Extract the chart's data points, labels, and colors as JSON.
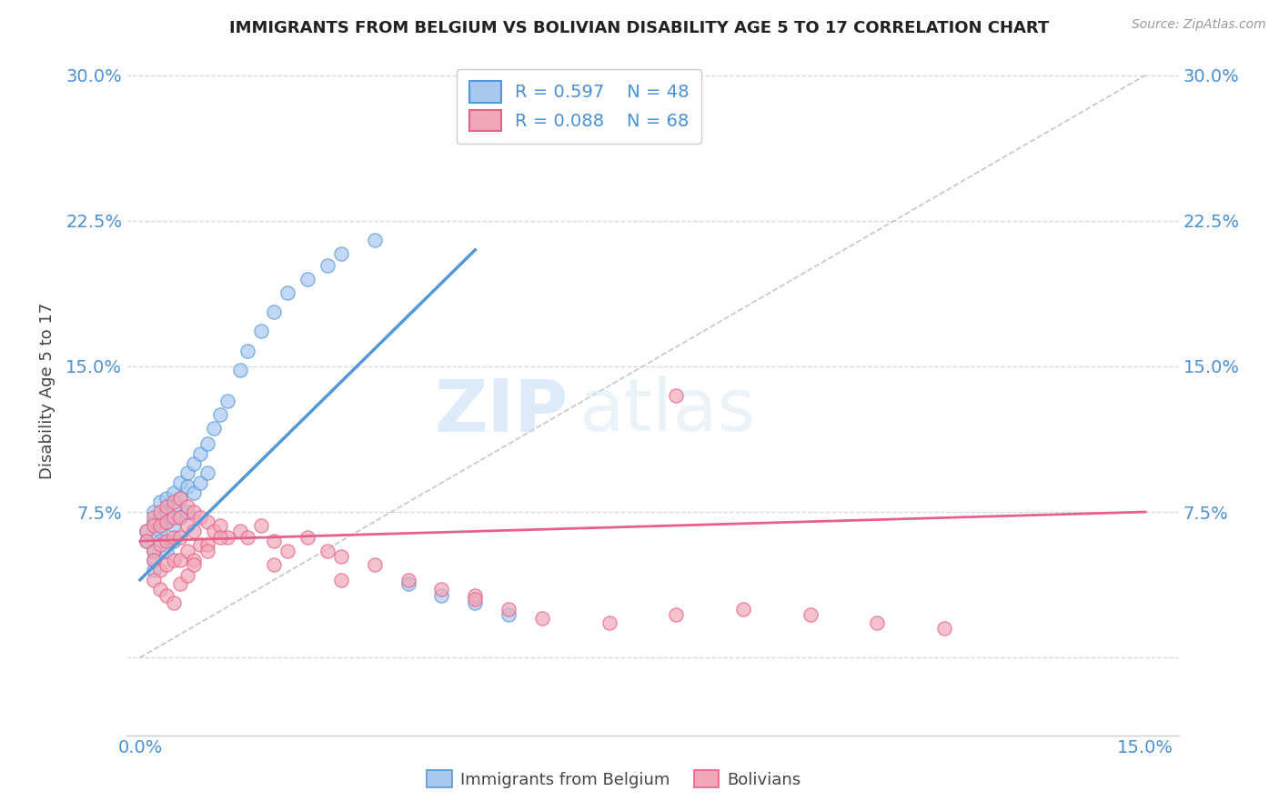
{
  "title": "IMMIGRANTS FROM BELGIUM VS BOLIVIAN DISABILITY AGE 5 TO 17 CORRELATION CHART",
  "source": "Source: ZipAtlas.com",
  "ylabel": "Disability Age 5 to 17",
  "xlim": [
    -0.002,
    0.155
  ],
  "ylim": [
    -0.04,
    0.315
  ],
  "xticks": [
    0.0,
    0.15
  ],
  "xticklabels": [
    "0.0%",
    "15.0%"
  ],
  "yticks": [
    0.0,
    0.075,
    0.15,
    0.225,
    0.3
  ],
  "yticklabels": [
    "",
    "7.5%",
    "15.0%",
    "22.5%",
    "30.0%"
  ],
  "legend_r1": "R = 0.597",
  "legend_n1": "N = 48",
  "legend_r2": "R = 0.088",
  "legend_n2": "N = 68",
  "color_belgium": "#a8c8f0",
  "color_bolivia": "#f0a8b8",
  "color_line_belgium": "#5598d8",
  "color_line_bolivia": "#e8608a",
  "color_diag": "#b8b8b8",
  "color_grid": "#d0d8e8",
  "color_tick_label": "#4a90d9",
  "watermark_zip": "ZIP",
  "watermark_atlas": "atlas",
  "belgium_scatter_x": [
    0.001,
    0.001,
    0.002,
    0.002,
    0.002,
    0.002,
    0.002,
    0.003,
    0.003,
    0.003,
    0.003,
    0.003,
    0.004,
    0.004,
    0.004,
    0.004,
    0.005,
    0.005,
    0.005,
    0.005,
    0.006,
    0.006,
    0.006,
    0.007,
    0.007,
    0.007,
    0.008,
    0.008,
    0.009,
    0.009,
    0.01,
    0.01,
    0.011,
    0.012,
    0.013,
    0.015,
    0.016,
    0.018,
    0.02,
    0.022,
    0.025,
    0.028,
    0.03,
    0.035,
    0.04,
    0.045,
    0.05,
    0.055
  ],
  "belgium_scatter_y": [
    0.065,
    0.06,
    0.07,
    0.075,
    0.055,
    0.05,
    0.045,
    0.08,
    0.068,
    0.072,
    0.065,
    0.06,
    0.075,
    0.082,
    0.07,
    0.055,
    0.085,
    0.078,
    0.068,
    0.06,
    0.09,
    0.082,
    0.072,
    0.095,
    0.088,
    0.075,
    0.1,
    0.085,
    0.105,
    0.09,
    0.11,
    0.095,
    0.118,
    0.125,
    0.132,
    0.148,
    0.158,
    0.168,
    0.178,
    0.188,
    0.195,
    0.202,
    0.208,
    0.215,
    0.038,
    0.032,
    0.028,
    0.022
  ],
  "bolivia_scatter_x": [
    0.001,
    0.001,
    0.002,
    0.002,
    0.002,
    0.002,
    0.003,
    0.003,
    0.003,
    0.003,
    0.004,
    0.004,
    0.004,
    0.004,
    0.005,
    0.005,
    0.005,
    0.005,
    0.006,
    0.006,
    0.006,
    0.006,
    0.007,
    0.007,
    0.007,
    0.008,
    0.008,
    0.008,
    0.009,
    0.009,
    0.01,
    0.01,
    0.011,
    0.012,
    0.013,
    0.015,
    0.016,
    0.018,
    0.02,
    0.022,
    0.025,
    0.028,
    0.03,
    0.035,
    0.04,
    0.045,
    0.05,
    0.055,
    0.06,
    0.07,
    0.08,
    0.09,
    0.1,
    0.11,
    0.12,
    0.002,
    0.003,
    0.004,
    0.005,
    0.006,
    0.007,
    0.008,
    0.01,
    0.012,
    0.02,
    0.03,
    0.05,
    0.08
  ],
  "bolivia_scatter_y": [
    0.065,
    0.06,
    0.072,
    0.068,
    0.055,
    0.05,
    0.075,
    0.068,
    0.058,
    0.045,
    0.078,
    0.07,
    0.06,
    0.048,
    0.08,
    0.072,
    0.062,
    0.05,
    0.082,
    0.072,
    0.062,
    0.05,
    0.078,
    0.068,
    0.055,
    0.075,
    0.065,
    0.05,
    0.072,
    0.058,
    0.07,
    0.058,
    0.065,
    0.068,
    0.062,
    0.065,
    0.062,
    0.068,
    0.06,
    0.055,
    0.062,
    0.055,
    0.052,
    0.048,
    0.04,
    0.035,
    0.032,
    0.025,
    0.02,
    0.018,
    0.135,
    0.025,
    0.022,
    0.018,
    0.015,
    0.04,
    0.035,
    0.032,
    0.028,
    0.038,
    0.042,
    0.048,
    0.055,
    0.062,
    0.048,
    0.04,
    0.03,
    0.022
  ],
  "belgium_line_x": [
    0.0,
    0.05
  ],
  "belgium_line_y": [
    0.04,
    0.21
  ],
  "bolivia_line_x": [
    0.0,
    0.15
  ],
  "bolivia_line_y": [
    0.06,
    0.075
  ],
  "diag_line_x": [
    0.0,
    0.15
  ],
  "diag_line_y": [
    0.0,
    0.3
  ]
}
